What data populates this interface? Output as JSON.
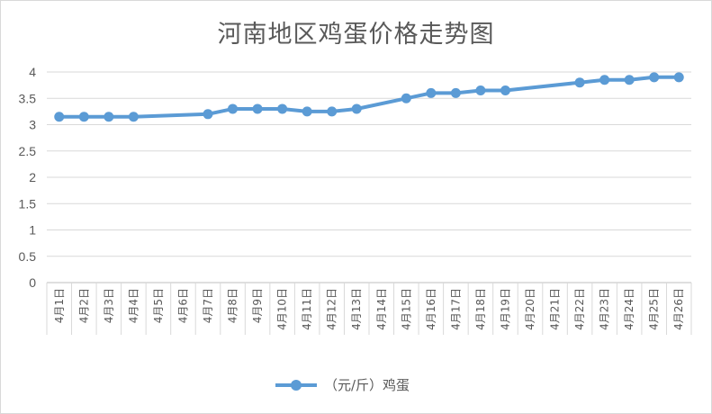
{
  "chart_data": {
    "type": "line",
    "title": "河南地区鸡蛋价格走势图",
    "xlabel": "",
    "ylabel": "",
    "ylim": [
      0,
      4
    ],
    "yticks": [
      "0",
      "0.5",
      "1",
      "1.5",
      "2",
      "2.5",
      "3",
      "3.5",
      "4"
    ],
    "grid": true,
    "legend_position": "bottom",
    "line_color": "#5B9BD5",
    "categories": [
      "4月1日",
      "4月2日",
      "4月3日",
      "4月4日",
      "4月5日",
      "4月6日",
      "4月7日",
      "4月8日",
      "4月9日",
      "4月10日",
      "4月11日",
      "4月12日",
      "4月13日",
      "4月14日",
      "4月15日",
      "4月16日",
      "4月17日",
      "4月18日",
      "4月19日",
      "4月20日",
      "4月21日",
      "4月22日",
      "4月23日",
      "4月24日",
      "4月25日",
      "4月26日"
    ],
    "series": [
      {
        "name": "（元/斤）鸡蛋",
        "values": [
          3.15,
          3.15,
          3.15,
          3.15,
          null,
          null,
          3.2,
          3.3,
          3.3,
          3.3,
          3.25,
          3.25,
          3.3,
          null,
          3.5,
          3.6,
          3.6,
          3.65,
          3.65,
          null,
          null,
          3.8,
          3.85,
          3.85,
          3.9,
          3.9
        ]
      }
    ]
  }
}
